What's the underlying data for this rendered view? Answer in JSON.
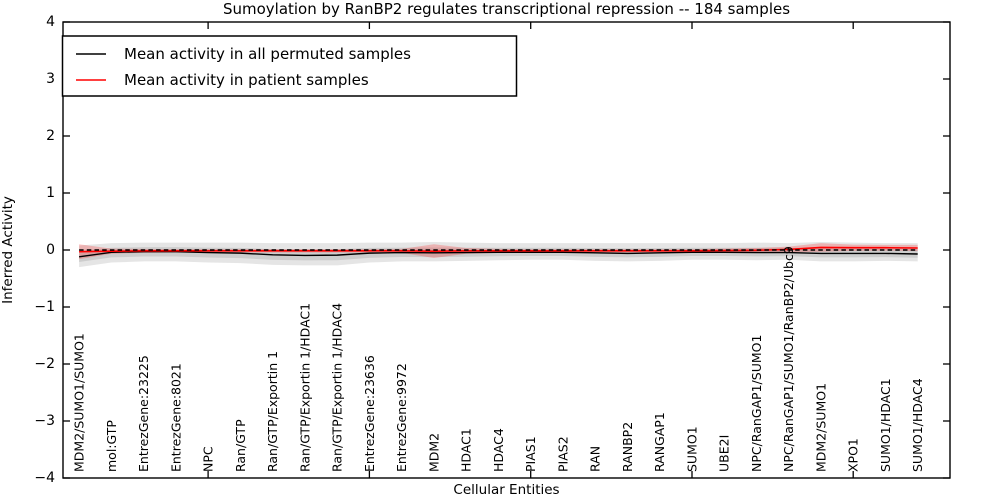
{
  "figure": {
    "background": "#ffffff"
  },
  "chart_data": {
    "type": "line",
    "title": "Sumoylation by RanBP2 regulates transcriptional repression -- 184 samples",
    "xlabel": "Cellular Entities",
    "ylabel": "Inferred Activity",
    "ylim": [
      -4,
      4
    ],
    "grid": false,
    "yticks": [
      -4,
      -3,
      -2,
      -1,
      0,
      1,
      2,
      3,
      4
    ],
    "ytick_labels": [
      "−4",
      "−3",
      "−2",
      "−1",
      "0",
      "1",
      "2",
      "3",
      "4"
    ],
    "xtick_index_positions": [
      4,
      9,
      14,
      19,
      24
    ],
    "legend": {
      "position": "upper-left",
      "entries": [
        {
          "label": "Mean activity in all permuted samples",
          "color": "#000000"
        },
        {
          "label": "Mean activity in patient samples",
          "color": "#ff0000"
        }
      ]
    },
    "categories": [
      "MDM2/SUMO1/SUMO1",
      "mol:GTP",
      "EntrezGene:23225",
      "EntrezGene:8021",
      "NPC",
      "Ran/GTP",
      "Ran/GTP/Exportin 1",
      "Ran/GTP/Exportin 1/HDAC1",
      "Ran/GTP/Exportin 1/HDAC4",
      "EntrezGene:23636",
      "EntrezGene:9972",
      "MDM2",
      "HDAC1",
      "HDAC4",
      "PIAS1",
      "PIAS2",
      "RAN",
      "RANBP2",
      "RANGAP1",
      "SUMO1",
      "UBE2I",
      "NPC/RanGAP1/SUMO1",
      "NPC/RanGAP1/SUMO1/RanBP2/Ubc9",
      "MDM2/SUMO1",
      "XPO1",
      "SUMO1/HDAC1",
      "SUMO1/HDAC4"
    ],
    "series": [
      {
        "name": "Mean activity in all permuted samples",
        "type": "line",
        "color": "#000000",
        "values": [
          -0.12,
          -0.04,
          -0.03,
          -0.03,
          -0.045,
          -0.055,
          -0.085,
          -0.095,
          -0.09,
          -0.055,
          -0.045,
          -0.05,
          -0.045,
          -0.04,
          -0.04,
          -0.04,
          -0.05,
          -0.06,
          -0.05,
          -0.04,
          -0.04,
          -0.045,
          -0.045,
          -0.06,
          -0.06,
          -0.06,
          -0.07
        ]
      },
      {
        "name": "Mean activity in patient samples",
        "type": "line",
        "color": "#ff0000",
        "values": [
          -0.03,
          -0.02,
          -0.015,
          -0.015,
          -0.015,
          -0.015,
          -0.015,
          -0.015,
          -0.015,
          -0.015,
          -0.015,
          -0.02,
          -0.015,
          -0.015,
          -0.015,
          -0.015,
          -0.015,
          -0.015,
          -0.015,
          -0.015,
          -0.01,
          -0.005,
          0.01,
          0.045,
          0.04,
          0.04,
          0.035
        ]
      }
    ],
    "bands": [
      {
        "name": "permuted-std-band",
        "color": "#000000",
        "opacity": 0.1,
        "upper": [
          0.08,
          0.12,
          0.13,
          0.13,
          0.13,
          0.13,
          0.12,
          0.12,
          0.12,
          0.13,
          0.13,
          0.14,
          0.13,
          0.12,
          0.12,
          0.12,
          0.12,
          0.12,
          0.12,
          0.12,
          0.12,
          0.13,
          0.12,
          0.14,
          0.13,
          0.12,
          0.12
        ],
        "lower": [
          -0.3,
          -0.22,
          -0.2,
          -0.2,
          -0.22,
          -0.23,
          -0.26,
          -0.27,
          -0.27,
          -0.22,
          -0.2,
          -0.2,
          -0.19,
          -0.18,
          -0.17,
          -0.17,
          -0.19,
          -0.2,
          -0.19,
          -0.17,
          -0.17,
          -0.18,
          -0.17,
          -0.2,
          -0.2,
          -0.19,
          -0.2
        ]
      },
      {
        "name": "patient-std-band",
        "color": "#ff0000",
        "opacity": 0.22,
        "center_series": "Mean activity in patient samples",
        "half_widths": [
          0.13,
          0.045,
          0.035,
          0.03,
          0.03,
          0.03,
          0.03,
          0.03,
          0.03,
          0.03,
          0.035,
          0.12,
          0.05,
          0.035,
          0.03,
          0.03,
          0.03,
          0.03,
          0.03,
          0.03,
          0.035,
          0.04,
          0.05,
          0.075,
          0.055,
          0.05,
          0.055
        ]
      }
    ],
    "reference_line": {
      "y": 0,
      "style": "dashed",
      "color": "#000000"
    }
  }
}
